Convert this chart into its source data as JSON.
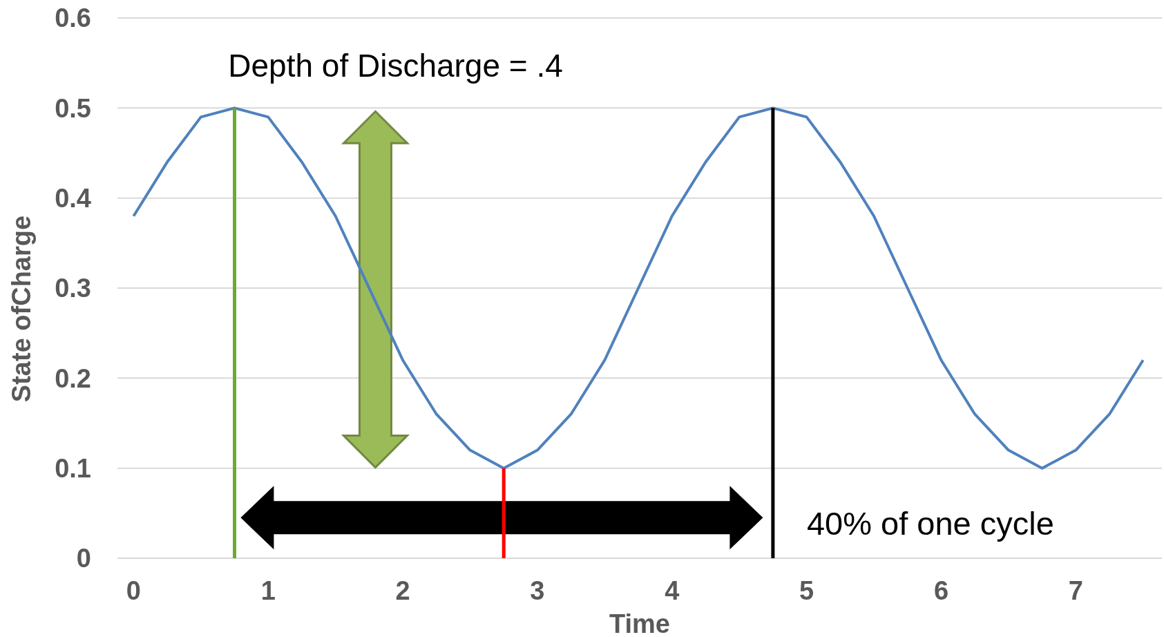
{
  "chart_data": {
    "type": "line",
    "xlabel": "Time",
    "ylabel": "State ofCharge",
    "xlim": [
      -0.12,
      7.64
    ],
    "xticks": [
      0,
      1,
      2,
      3,
      4,
      5,
      6,
      7
    ],
    "ylim": [
      0,
      0.6
    ],
    "yticks": [
      0,
      0.1,
      0.2,
      0.3,
      0.4,
      0.5,
      0.6
    ],
    "grid": "y",
    "annotations": [
      "Depth of Discharge = .4",
      "40% of one cycle"
    ],
    "series": [
      {
        "color": "#4f81bd",
        "x": [
          0,
          0.25,
          0.5,
          0.75,
          1,
          1.25,
          1.5,
          1.75,
          2,
          2.25,
          2.5,
          2.75,
          3,
          3.25,
          3.5,
          3.75,
          4,
          4.25,
          4.5,
          4.75,
          5,
          5.25,
          5.5,
          5.75,
          6,
          6.25,
          6.5,
          6.75,
          7,
          7.25,
          7.5
        ],
        "values": [
          0.38,
          0.44,
          0.49,
          0.5,
          0.49,
          0.44,
          0.38,
          0.3,
          0.22,
          0.16,
          0.12,
          0.1,
          0.12,
          0.16,
          0.22,
          0.3,
          0.38,
          0.44,
          0.49,
          0.5,
          0.49,
          0.44,
          0.38,
          0.3,
          0.22,
          0.16,
          0.12,
          0.1,
          0.12,
          0.16,
          0.22
        ]
      },
      {
        "color": "#6aaa2e",
        "x": [
          0.75,
          0.75
        ],
        "values": [
          0,
          0.5
        ]
      },
      {
        "color": "#ff0000",
        "x": [
          2.75,
          2.75
        ],
        "values": [
          0,
          0.1
        ]
      },
      {
        "color": "#000000",
        "x": [
          4.75,
          4.75
        ],
        "values": [
          0,
          0.5
        ]
      }
    ]
  }
}
